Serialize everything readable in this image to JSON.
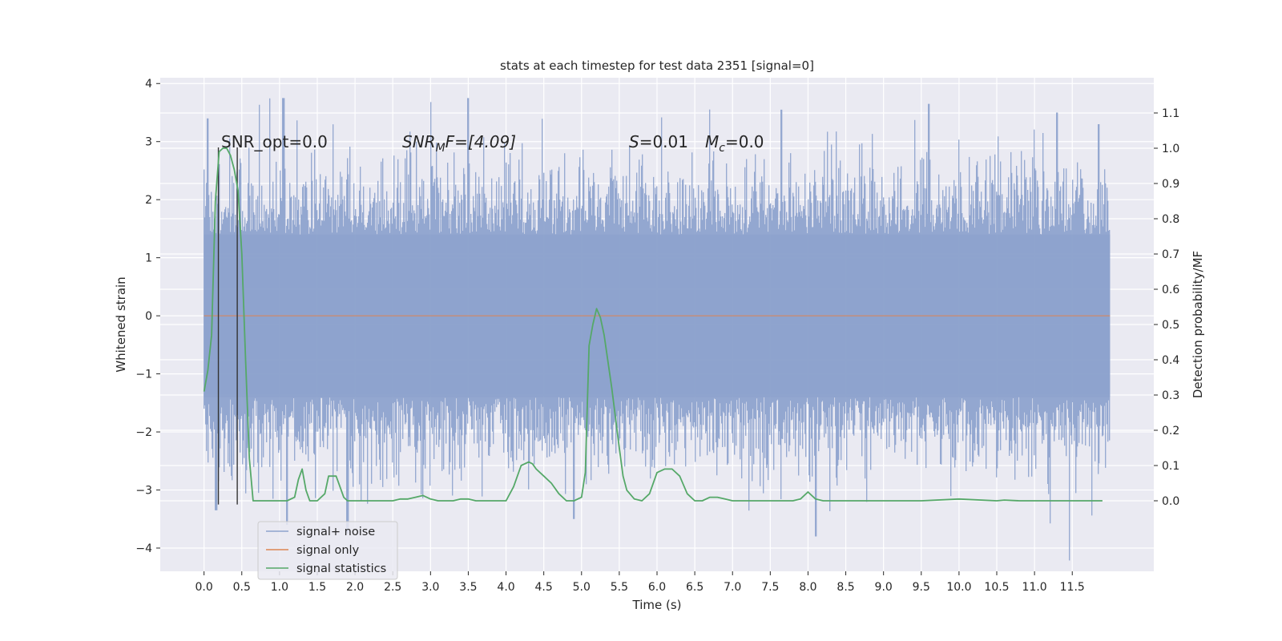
{
  "chart_data": {
    "type": "line",
    "title": "stats at each timestep for test data 2351 [signal=0]",
    "xlabel": "Time (s)",
    "ylabel_left": "Whitened strain",
    "ylabel_right": "Detection probability/MF",
    "xlim": [
      -0.58,
      12.58
    ],
    "ylim_left": [
      -4.4,
      4.1
    ],
    "ylim_right": [
      -0.2,
      1.2
    ],
    "x_ticks": [
      "0.0",
      "0.5",
      "1.0",
      "1.5",
      "2.0",
      "2.5",
      "3.0",
      "3.5",
      "4.0",
      "4.5",
      "5.0",
      "5.5",
      "6.0",
      "6.5",
      "7.0",
      "7.5",
      "8.0",
      "8.5",
      "9.0",
      "9.5",
      "10.0",
      "10.5",
      "11.0",
      "11.5"
    ],
    "y_ticks_left": [
      "4",
      "3",
      "2",
      "1",
      "0",
      "−1",
      "−2",
      "−3",
      "−4"
    ],
    "y_ticks_right": [
      "1.1",
      "1.0",
      "0.9",
      "0.8",
      "0.7",
      "0.6",
      "0.5",
      "0.4",
      "0.3",
      "0.2",
      "0.1",
      "0.0"
    ],
    "grid": true,
    "legend_position": "lower-left",
    "annotations": {
      "snr_opt": "SNR_opt=0.0",
      "snr_mf_prefix": "SNR",
      "snr_mf_sub": "M",
      "snr_mf_suffix": "F=[4.09]",
      "s_label": "S",
      "s_value": "=0.01",
      "mc_label": "M",
      "mc_sub": "c",
      "mc_value": "=0.0"
    },
    "vertical_lines_x": [
      0.19,
      0.44
    ],
    "vertical_lines_y": [
      -3.25,
      2.9
    ],
    "noise": {
      "x_range": [
        0.0,
        12.0
      ],
      "band_1sigma": [
        -1.4,
        1.4
      ],
      "envelope_typical": [
        -2.2,
        2.3
      ],
      "peaks": [
        {
          "x": 0.05,
          "y": 3.4
        },
        {
          "x": 0.16,
          "y": -3.35
        },
        {
          "x": 1.05,
          "y": 3.75
        },
        {
          "x": 1.1,
          "y": -3.6
        },
        {
          "x": 1.9,
          "y": -3.75
        },
        {
          "x": 3.5,
          "y": 3.75
        },
        {
          "x": 4.9,
          "y": -3.5
        },
        {
          "x": 7.65,
          "y": 3.55
        },
        {
          "x": 8.1,
          "y": -3.8
        },
        {
          "x": 9.6,
          "y": 3.65
        },
        {
          "x": 11.3,
          "y": 3.5
        },
        {
          "x": 11.85,
          "y": 3.3
        }
      ]
    },
    "series": [
      {
        "name": "signal+ noise",
        "color": "#8ea3cd"
      },
      {
        "name": "signal only",
        "color": "#dd8452",
        "x": [
          0.0,
          12.0
        ],
        "y": [
          0.0,
          0.0
        ]
      },
      {
        "name": "signal statistics",
        "color": "#55a868",
        "x": [
          0.0,
          0.05,
          0.1,
          0.15,
          0.2,
          0.25,
          0.3,
          0.35,
          0.4,
          0.45,
          0.5,
          0.55,
          0.6,
          0.65,
          0.7,
          0.75,
          0.8,
          0.9,
          1.0,
          1.1,
          1.2,
          1.25,
          1.3,
          1.35,
          1.4,
          1.5,
          1.6,
          1.65,
          1.7,
          1.75,
          1.8,
          1.85,
          1.9,
          2.0,
          2.1,
          2.3,
          2.5,
          2.6,
          2.7,
          2.8,
          2.9,
          3.0,
          3.1,
          3.3,
          3.4,
          3.5,
          3.6,
          3.8,
          4.0,
          4.1,
          4.2,
          4.3,
          4.35,
          4.4,
          4.5,
          4.6,
          4.7,
          4.8,
          4.9,
          5.0,
          5.05,
          5.1,
          5.15,
          5.2,
          5.25,
          5.3,
          5.4,
          5.5,
          5.55,
          5.6,
          5.7,
          5.8,
          5.9,
          6.0,
          6.1,
          6.2,
          6.3,
          6.4,
          6.5,
          6.6,
          6.7,
          6.8,
          6.9,
          7.0,
          7.2,
          7.5,
          7.8,
          7.9,
          8.0,
          8.1,
          8.2,
          8.5,
          9.0,
          9.5,
          10.0,
          10.5,
          10.6,
          10.8,
          11.0,
          11.5,
          11.9
        ],
        "y": [
          0.31,
          0.37,
          0.47,
          0.85,
          0.99,
          1.0,
          1.0,
          0.98,
          0.94,
          0.88,
          0.7,
          0.4,
          0.12,
          0.0,
          0.0,
          0.0,
          0.0,
          0.0,
          0.0,
          0.0,
          0.01,
          0.06,
          0.09,
          0.03,
          0.0,
          0.0,
          0.02,
          0.07,
          0.07,
          0.07,
          0.04,
          0.01,
          0.0,
          0.0,
          0.0,
          0.0,
          0.0,
          0.005,
          0.005,
          0.01,
          0.015,
          0.005,
          0.0,
          0.0,
          0.005,
          0.005,
          0.0,
          0.0,
          0.0,
          0.04,
          0.1,
          0.11,
          0.105,
          0.09,
          0.07,
          0.05,
          0.02,
          0.0,
          0.0,
          0.01,
          0.08,
          0.44,
          0.5,
          0.545,
          0.52,
          0.47,
          0.32,
          0.15,
          0.07,
          0.03,
          0.005,
          0.0,
          0.02,
          0.08,
          0.09,
          0.09,
          0.07,
          0.02,
          0.0,
          0.0,
          0.01,
          0.01,
          0.005,
          0.0,
          0.0,
          0.0,
          0.0,
          0.005,
          0.025,
          0.005,
          0.0,
          0.0,
          0.0,
          0.0,
          0.005,
          0.0,
          0.002,
          0.0,
          0.0,
          0.0,
          0.0
        ]
      }
    ]
  }
}
